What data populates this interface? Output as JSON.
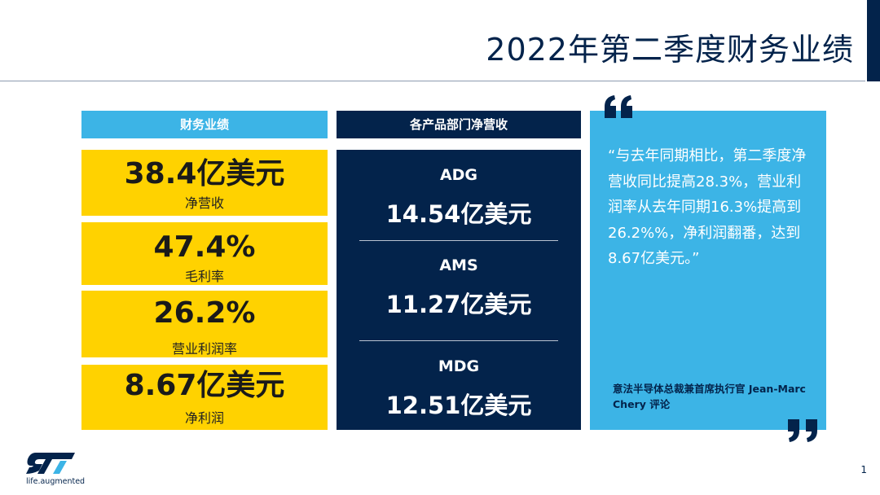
{
  "title": "2022年第二季度财务业绩",
  "left": {
    "header": "财务业绩",
    "kpis": [
      {
        "value": "38.4亿美元",
        "label": "净营收"
      },
      {
        "value": "47.4%",
        "label": "毛利率"
      },
      {
        "value": "26.2%",
        "label": "营业利润率"
      },
      {
        "value": "8.67亿美元",
        "label": "净利润"
      }
    ]
  },
  "middle": {
    "header": "各产品部门净营收",
    "segments": [
      {
        "name": "ADG",
        "value": "14.54亿美元"
      },
      {
        "name": "AMS",
        "value": "11.27亿美元"
      },
      {
        "name": "MDG",
        "value": "12.51亿美元"
      }
    ]
  },
  "quote": {
    "text": "“与去年同期相比，第二季度净营收同比提高28.3%，营业利润率从去年同期16.3%提高到26.2%%，净利润翻番，达到 8.67亿美元。”",
    "attribution": "意法半导体总裁兼首席执行官 Jean-Marc Chery 评论"
  },
  "footer": {
    "tagline": "life.augmented",
    "page_number": "1"
  },
  "colors": {
    "navy": "#03234b",
    "light_blue": "#3cb4e6",
    "yellow": "#ffd200"
  },
  "icons": [
    "st-logo-icon",
    "open-quote-icon",
    "close-quote-icon"
  ]
}
